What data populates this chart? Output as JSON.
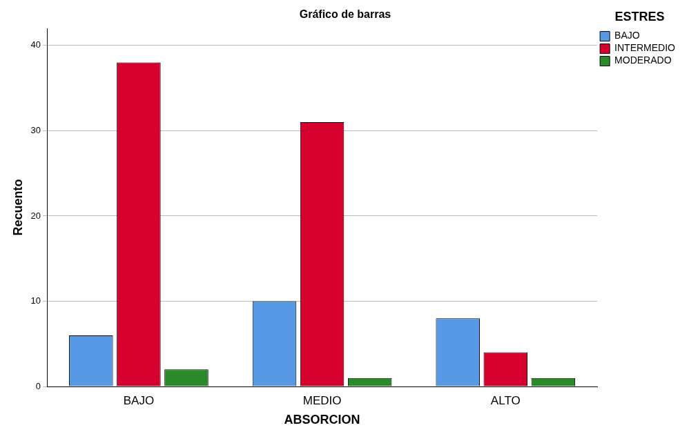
{
  "chart_data": {
    "type": "bar",
    "title": "Gráfico de barras",
    "xlabel": "ABSORCION",
    "ylabel": "Recuento",
    "legend_title": "ESTRES",
    "categories": [
      "BAJO",
      "MEDIO",
      "ALTO"
    ],
    "series": [
      {
        "name": "BAJO",
        "color": "#5799e5",
        "values": [
          6,
          10,
          8
        ]
      },
      {
        "name": "INTERMEDIO",
        "color": "#d6002f",
        "values": [
          38,
          31,
          4
        ]
      },
      {
        "name": "MODERADO",
        "color": "#2a8a2a",
        "values": [
          2,
          1,
          1
        ]
      }
    ],
    "ylim": [
      0,
      42
    ],
    "yticks": [
      0,
      10,
      20,
      30,
      40
    ],
    "grid": "y",
    "legend": "top right"
  }
}
